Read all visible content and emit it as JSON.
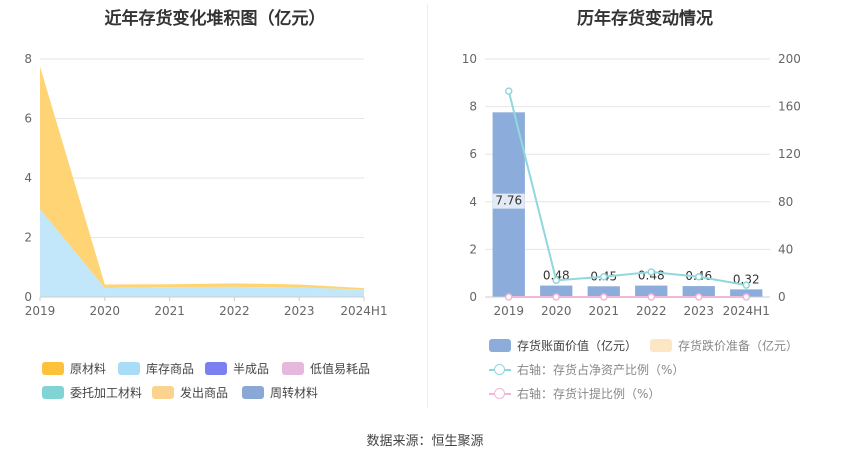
{
  "source_label": "数据来源：恒生聚源",
  "chart_data": [
    {
      "type": "area",
      "title": "近年存货变化堆积图（亿元）",
      "categories": [
        "2019",
        "2020",
        "2021",
        "2022",
        "2023",
        "2024H1"
      ],
      "ylim": [
        0,
        8
      ],
      "yticks": [
        "0",
        "2",
        "4",
        "6",
        "8"
      ],
      "stacked": true,
      "grid": true,
      "legend_position": "bottom",
      "series": [
        {
          "name": "原材料",
          "color": "#fbc23a",
          "values": [
            4.8,
            0.12,
            0.1,
            0.12,
            0.1,
            0.05
          ]
        },
        {
          "name": "库存商品",
          "color": "#a8dcf7",
          "values": [
            2.95,
            0.3,
            0.33,
            0.34,
            0.32,
            0.25
          ]
        },
        {
          "name": "半成品",
          "color": "#7b7fef",
          "values": [
            0,
            0,
            0,
            0,
            0,
            0
          ]
        },
        {
          "name": "低值易耗品",
          "color": "#e6b8dc",
          "values": [
            0,
            0,
            0,
            0,
            0,
            0
          ]
        },
        {
          "name": "委托加工材料",
          "color": "#80d4d4",
          "values": [
            0,
            0,
            0,
            0,
            0,
            0
          ]
        },
        {
          "name": "发出商品",
          "color": "#fcd28f",
          "values": [
            0,
            0,
            0,
            0,
            0,
            0
          ]
        },
        {
          "name": "周转材料",
          "color": "#8aa8d6",
          "values": [
            0,
            0,
            0,
            0,
            0,
            0
          ]
        }
      ],
      "area_colors": {
        "top": "#ffd475",
        "bottom": "#c2e7fa"
      },
      "legend": [
        {
          "label": "原材料",
          "color": "#fbc23a"
        },
        {
          "label": "库存商品",
          "color": "#a8dcf7"
        },
        {
          "label": "半成品",
          "color": "#7b7fef"
        },
        {
          "label": "低值易耗品",
          "color": "#e6b8dc"
        },
        {
          "label": "委托加工材料",
          "color": "#80d4d4"
        },
        {
          "label": "发出商品",
          "color": "#fcd28f"
        },
        {
          "label": "周转材料",
          "color": "#8aa8d6"
        }
      ]
    },
    {
      "type": "bar",
      "title": "历年存货变动情况",
      "categories": [
        "2019",
        "2020",
        "2021",
        "2022",
        "2023",
        "2024H1"
      ],
      "ylim": [
        0,
        10
      ],
      "yticks": [
        "0",
        "2",
        "4",
        "6",
        "8",
        "10"
      ],
      "y2lim": [
        0,
        200
      ],
      "y2ticks": [
        "0",
        "40",
        "80",
        "120",
        "160",
        "200"
      ],
      "grid": true,
      "legend_position": "bottom",
      "series": [
        {
          "name": "存货账面价值（亿元）",
          "axis": "left",
          "kind": "bar",
          "color": "#8caddb",
          "values": [
            7.76,
            0.48,
            0.45,
            0.48,
            0.46,
            0.32
          ],
          "labels": [
            "7.76",
            "0.48",
            "0.45",
            "0.48",
            "0.46",
            "0.32"
          ]
        },
        {
          "name": "存货跌价准备（亿元）",
          "axis": "left",
          "kind": "bar",
          "color": "#fde6c4",
          "values": [
            0,
            0,
            0,
            0,
            0,
            0
          ]
        },
        {
          "name": "右轴：存货占净资产比例（%）",
          "axis": "right",
          "kind": "line",
          "color": "#8fd8dc",
          "values": [
            173,
            14,
            17,
            21,
            17,
            10
          ]
        },
        {
          "name": "右轴：存货计提比例（%）",
          "axis": "right",
          "kind": "line",
          "color": "#f0b8d8",
          "values": [
            0,
            0,
            0,
            0,
            0,
            0
          ]
        }
      ]
    }
  ]
}
